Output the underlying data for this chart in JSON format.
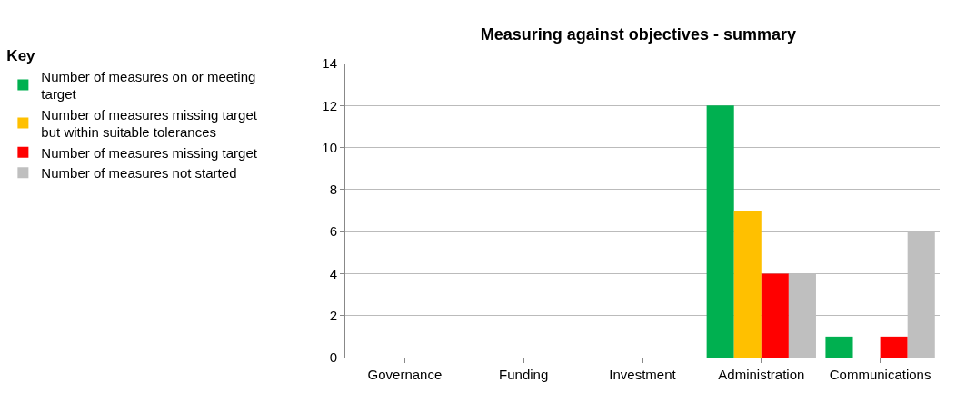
{
  "chart_data": {
    "type": "bar",
    "title": "Measuring against objectives - summary",
    "legend_title": "Key",
    "categories": [
      "Governance",
      "Funding",
      "Investment",
      "Administration",
      "Communications"
    ],
    "series": [
      {
        "name": "Number of measures on or meeting target",
        "color": "#00b050",
        "values": [
          0,
          0,
          0,
          12,
          1
        ]
      },
      {
        "name": "Number of measures missing target but within suitable tolerances",
        "color": "#ffc000",
        "values": [
          0,
          0,
          0,
          7,
          0
        ]
      },
      {
        "name": "Number of measures missing target",
        "color": "#ff0000",
        "values": [
          0,
          0,
          0,
          4,
          1
        ]
      },
      {
        "name": "Number of measures not started",
        "color": "#bfbfbf",
        "values": [
          0,
          0,
          0,
          4,
          6
        ]
      }
    ],
    "ylim": [
      0,
      14
    ],
    "yticks": [
      0,
      2,
      4,
      6,
      8,
      10,
      12,
      14
    ],
    "grid": "y",
    "legend": "left"
  }
}
